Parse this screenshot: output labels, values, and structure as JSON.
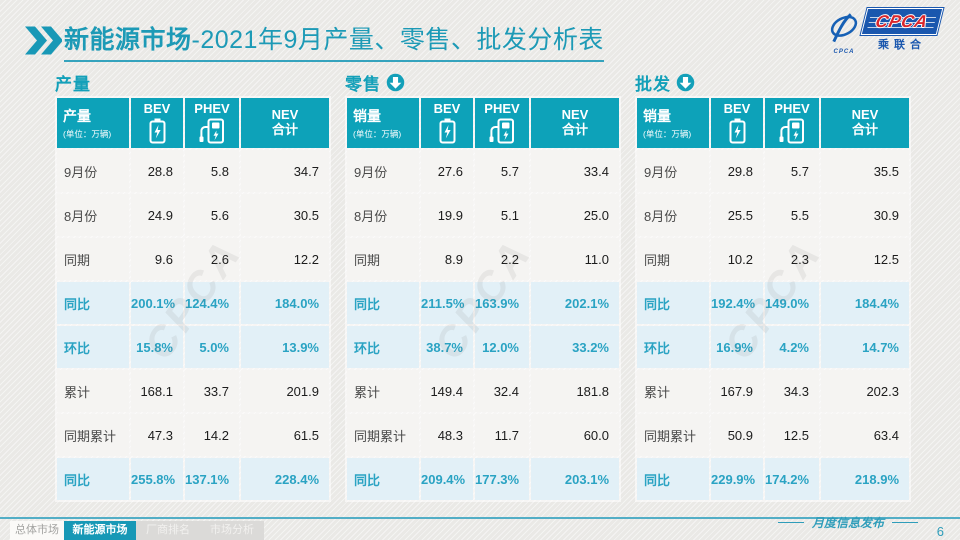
{
  "page": {
    "title_emphasis": "新能源市场",
    "title_rest": "-2021年9月产量、零售、批发分析表",
    "footer_note": "月度信息发布",
    "page_number": "6"
  },
  "icons": {
    "title_icon": "double-chevron-right-icon",
    "bev_icon": "battery-icon",
    "phev_icon": "charging-station-icon",
    "section_arrow": "circle-down-arrow-icon",
    "logo_icon": "cpca-swirl-icon"
  },
  "colors": {
    "accent_teal": "#0da2b9",
    "title_teal": "#1d9ab6",
    "highlight_text": "#2aa3c3",
    "highlight_row_bg": "#e2f0f7",
    "logo_blue": "#1a57ae",
    "logo_red": "#d9262c"
  },
  "logo": {
    "wordmark": "CPCA",
    "subtitle": "乘联合",
    "swirl_caption": "CPCA"
  },
  "watermark": "CPCA",
  "footer_tabs": [
    {
      "label": "总体市场",
      "active": false
    },
    {
      "label": "新能源市场",
      "active": true
    },
    {
      "label": "厂商排名",
      "active": false
    },
    {
      "label": "市场分析",
      "active": false
    }
  ],
  "tables": [
    {
      "id": "production",
      "section_title": "产量",
      "arrow": false,
      "header": {
        "measure": "产量",
        "unit": "(单位：万辆)",
        "col_bev": "BEV",
        "col_phev": "PHEV",
        "col_nev": [
          "NEV",
          "合计"
        ]
      },
      "rows": [
        {
          "label": "9月份",
          "values": [
            "28.8",
            "5.8",
            "34.7"
          ],
          "highlight": false
        },
        {
          "label": "8月份",
          "values": [
            "24.9",
            "5.6",
            "30.5"
          ],
          "highlight": false
        },
        {
          "label": "同期",
          "values": [
            "9.6",
            "2.6",
            "12.2"
          ],
          "highlight": false
        },
        {
          "label": "同比",
          "values": [
            "200.1%",
            "124.4%",
            "184.0%"
          ],
          "highlight": true
        },
        {
          "label": "环比",
          "values": [
            "15.8%",
            "5.0%",
            "13.9%"
          ],
          "highlight": true
        },
        {
          "label": "累计",
          "values": [
            "168.1",
            "33.7",
            "201.9"
          ],
          "highlight": false
        },
        {
          "label": "同期累计",
          "values": [
            "47.3",
            "14.2",
            "61.5"
          ],
          "highlight": false
        },
        {
          "label": "同比",
          "values": [
            "255.8%",
            "137.1%",
            "228.4%"
          ],
          "highlight": true
        }
      ]
    },
    {
      "id": "retail",
      "section_title": "零售",
      "arrow": true,
      "header": {
        "measure": "销量",
        "unit": "(单位：万辆)",
        "col_bev": "BEV",
        "col_phev": "PHEV",
        "col_nev": [
          "NEV",
          "合计"
        ]
      },
      "rows": [
        {
          "label": "9月份",
          "values": [
            "27.6",
            "5.7",
            "33.4"
          ],
          "highlight": false
        },
        {
          "label": "8月份",
          "values": [
            "19.9",
            "5.1",
            "25.0"
          ],
          "highlight": false
        },
        {
          "label": "同期",
          "values": [
            "8.9",
            "2.2",
            "11.0"
          ],
          "highlight": false
        },
        {
          "label": "同比",
          "values": [
            "211.5%",
            "163.9%",
            "202.1%"
          ],
          "highlight": true
        },
        {
          "label": "环比",
          "values": [
            "38.7%",
            "12.0%",
            "33.2%"
          ],
          "highlight": true
        },
        {
          "label": "累计",
          "values": [
            "149.4",
            "32.4",
            "181.8"
          ],
          "highlight": false
        },
        {
          "label": "同期累计",
          "values": [
            "48.3",
            "11.7",
            "60.0"
          ],
          "highlight": false
        },
        {
          "label": "同比",
          "values": [
            "209.4%",
            "177.3%",
            "203.1%"
          ],
          "highlight": true
        }
      ]
    },
    {
      "id": "wholesale",
      "section_title": "批发",
      "arrow": true,
      "header": {
        "measure": "销量",
        "unit": "(单位：万辆)",
        "col_bev": "BEV",
        "col_phev": "PHEV",
        "col_nev": [
          "NEV",
          "合计"
        ]
      },
      "rows": [
        {
          "label": "9月份",
          "values": [
            "29.8",
            "5.7",
            "35.5"
          ],
          "highlight": false
        },
        {
          "label": "8月份",
          "values": [
            "25.5",
            "5.5",
            "30.9"
          ],
          "highlight": false
        },
        {
          "label": "同期",
          "values": [
            "10.2",
            "2.3",
            "12.5"
          ],
          "highlight": false
        },
        {
          "label": "同比",
          "values": [
            "192.4%",
            "149.0%",
            "184.4%"
          ],
          "highlight": true
        },
        {
          "label": "环比",
          "values": [
            "16.9%",
            "4.2%",
            "14.7%"
          ],
          "highlight": true
        },
        {
          "label": "累计",
          "values": [
            "167.9",
            "34.3",
            "202.3"
          ],
          "highlight": false
        },
        {
          "label": "同期累计",
          "values": [
            "50.9",
            "12.5",
            "63.4"
          ],
          "highlight": false
        },
        {
          "label": "同比",
          "values": [
            "229.9%",
            "174.2%",
            "218.9%"
          ],
          "highlight": true
        }
      ]
    }
  ]
}
